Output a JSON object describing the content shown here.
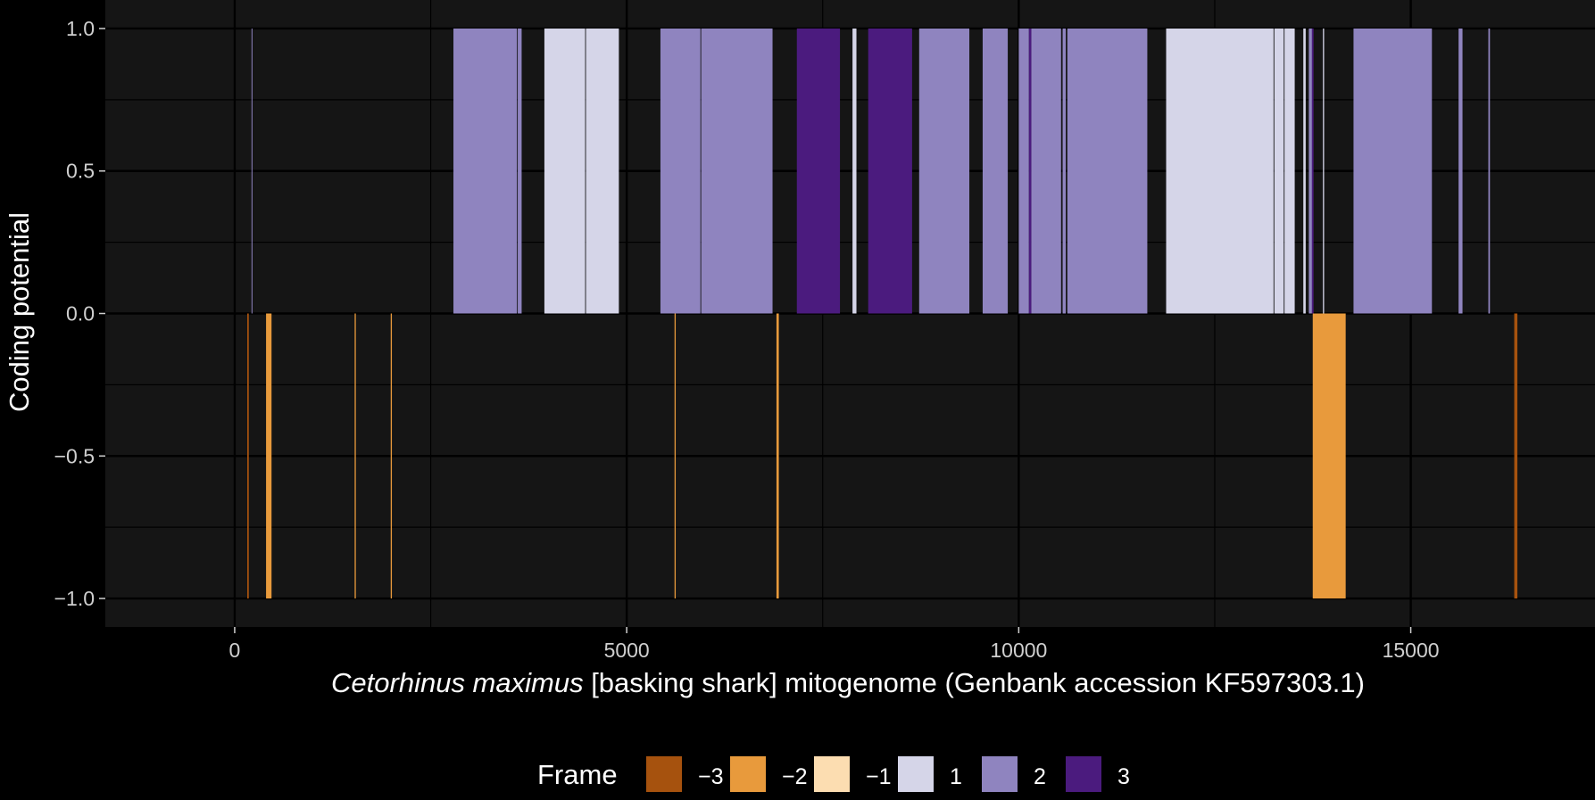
{
  "chart_data": {
    "type": "bar",
    "title": "",
    "xlabel_italic": "Cetorhinus maximus",
    "xlabel_rest": " [basking shark] mitogenome (Genbank accession KF597303.1)",
    "ylabel": "Coding potential",
    "xlim": [
      -1650,
      17350
    ],
    "ylim": [
      -1.1,
      1.1
    ],
    "x_ticks": [
      0,
      5000,
      10000,
      15000
    ],
    "x_tick_labels": [
      "0",
      "5000",
      "10000",
      "15000"
    ],
    "y_ticks": [
      -1.0,
      -0.5,
      0.0,
      0.5,
      1.0
    ],
    "y_tick_labels": [
      "−1.0",
      "−0.5",
      "0.0",
      "0.5",
      "1.0"
    ],
    "grid": true,
    "legend": {
      "title": "Frame",
      "position": "bottom",
      "entries": [
        {
          "frame": -3,
          "label": "−3",
          "color": "#A6520E"
        },
        {
          "frame": -2,
          "label": "−2",
          "color": "#E89A3C"
        },
        {
          "frame": -1,
          "label": "−1",
          "color": "#FCDDB1"
        },
        {
          "frame": 1,
          "label": "1",
          "color": "#D5D5E8"
        },
        {
          "frame": 2,
          "label": "2",
          "color": "#8F84BF"
        },
        {
          "frame": 3,
          "label": "3",
          "color": "#4B1B7E"
        }
      ]
    },
    "series": [
      {
        "frame": -3,
        "segments": [
          [
            160,
            180,
            -1
          ],
          [
            16320,
            16360,
            -1
          ]
        ]
      },
      {
        "frame": -2,
        "segments": [
          [
            400,
            470,
            -1
          ],
          [
            1530,
            1545,
            -1
          ],
          [
            1990,
            2005,
            -1
          ],
          [
            5610,
            5625,
            -1
          ],
          [
            6910,
            6940,
            -1
          ],
          [
            13750,
            14170,
            -1
          ]
        ]
      },
      {
        "frame": -1,
        "segments": []
      },
      {
        "frame": 1,
        "segments": [
          [
            3950,
            4470,
            1
          ],
          [
            4480,
            4900,
            1
          ],
          [
            7880,
            7930,
            1
          ],
          [
            11880,
            13250,
            1
          ],
          [
            13260,
            13380,
            1
          ],
          [
            13390,
            13520,
            1
          ],
          [
            13630,
            13660,
            1
          ],
          [
            13880,
            13895,
            1
          ]
        ]
      },
      {
        "frame": 2,
        "segments": [
          [
            215,
            225,
            1
          ],
          [
            2790,
            3600,
            1
          ],
          [
            3610,
            3660,
            1
          ],
          [
            5430,
            5940,
            1
          ],
          [
            5950,
            6860,
            1
          ],
          [
            8730,
            9370,
            1
          ],
          [
            9540,
            9860,
            1
          ],
          [
            10000,
            10130,
            1
          ],
          [
            10160,
            10540,
            1
          ],
          [
            10560,
            10600,
            1
          ],
          [
            10620,
            11640,
            1
          ],
          [
            14270,
            15270,
            1
          ],
          [
            15610,
            15660,
            1
          ],
          [
            15990,
            16010,
            1
          ],
          [
            13700,
            13740,
            1
          ]
        ]
      },
      {
        "frame": 3,
        "segments": [
          [
            7170,
            7720,
            1
          ],
          [
            8080,
            8640,
            1
          ],
          [
            10130,
            10160,
            1
          ],
          [
            13740,
            13760,
            1
          ]
        ]
      }
    ]
  }
}
